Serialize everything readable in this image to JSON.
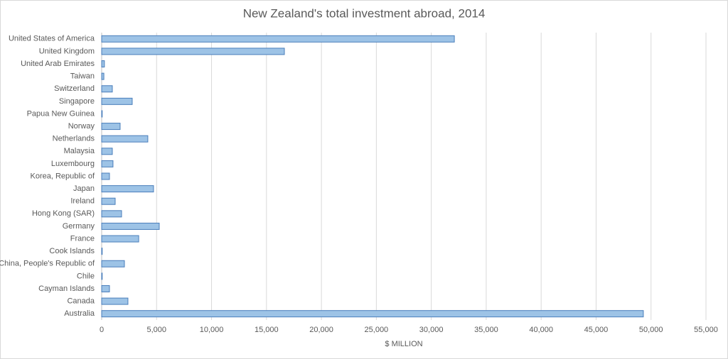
{
  "chart_data": {
    "type": "bar",
    "orientation": "horizontal",
    "title": "New Zealand's total investment abroad, 2014",
    "x_label": "$ MILLION",
    "categories": [
      "United States of America",
      "United Kingdom",
      "United Arab Emirates",
      "Taiwan",
      "Switzerland",
      "Singapore",
      "Papua New Guinea",
      "Norway",
      "Netherlands",
      "Malaysia",
      "Luxembourg",
      "Korea, Republic of",
      "Japan",
      "Ireland",
      "Hong Kong (SAR)",
      "Germany",
      "France",
      "Cook Islands",
      "China, People's Republic of",
      "Chile",
      "Cayman Islands",
      "Canada",
      "Australia"
    ],
    "values": [
      32100,
      16630,
      250,
      200,
      970,
      2780,
      50,
      1680,
      4200,
      970,
      1030,
      710,
      4720,
      1230,
      1810,
      5240,
      3370,
      50,
      2070,
      50,
      710,
      2390,
      49300
    ],
    "color": "#9dc3e6",
    "xlim": [
      0,
      55000
    ],
    "xticks": [
      0,
      {
        "value": 5000,
        "label": "5,000"
      },
      {
        "value": 10000,
        "label": "10,000"
      },
      {
        "value": 15000,
        "label": "15,000"
      },
      {
        "value": 20000,
        "label": "20,000"
      },
      {
        "value": 25000,
        "label": "25,000"
      },
      {
        "value": 30000,
        "label": "30,000"
      },
      {
        "value": 35000,
        "label": "35,000"
      },
      {
        "value": 40000,
        "label": "40,000"
      },
      {
        "value": 45000,
        "label": "45,000"
      },
      {
        "value": 50000,
        "label": "50,000"
      },
      {
        "value": 55000,
        "label": "55,000"
      }
    ],
    "grid": true
  }
}
